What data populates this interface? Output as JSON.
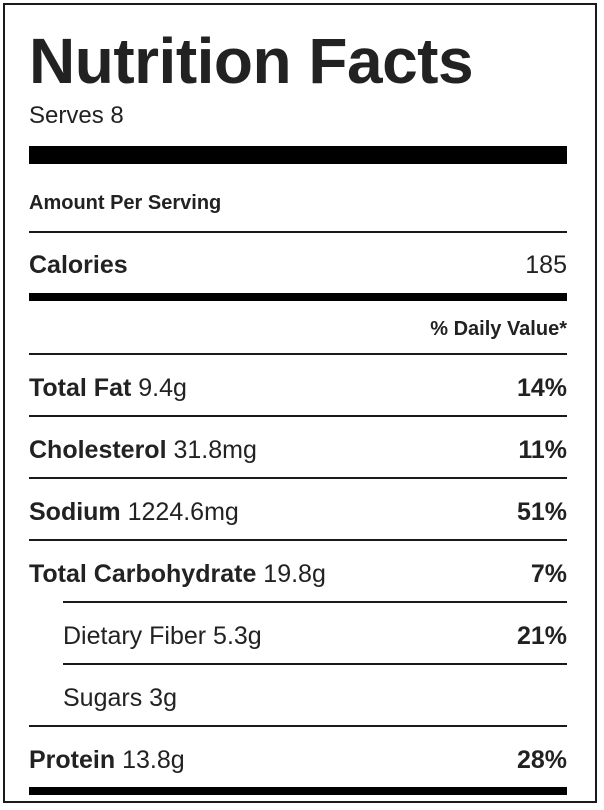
{
  "title": "Nutrition Facts",
  "serves": "Serves 8",
  "amount_per_serving": "Amount Per Serving",
  "calories": {
    "label": "Calories",
    "value": "185"
  },
  "daily_value_header": "% Daily Value*",
  "nutrients": [
    {
      "name": "Total Fat",
      "amount": "9.4g",
      "dv": "14%"
    },
    {
      "name": "Cholesterol",
      "amount": "31.8mg",
      "dv": "11%"
    },
    {
      "name": "Sodium",
      "amount": "1224.6mg",
      "dv": "51%"
    },
    {
      "name": "Total Carbohydrate",
      "amount": "19.8g",
      "dv": "7%"
    },
    {
      "name": "Dietary Fiber",
      "amount": "5.3g",
      "dv": "21%"
    },
    {
      "name": "Sugars",
      "amount": "3g",
      "dv": ""
    },
    {
      "name": "Protein",
      "amount": "13.8g",
      "dv": "28%"
    }
  ]
}
